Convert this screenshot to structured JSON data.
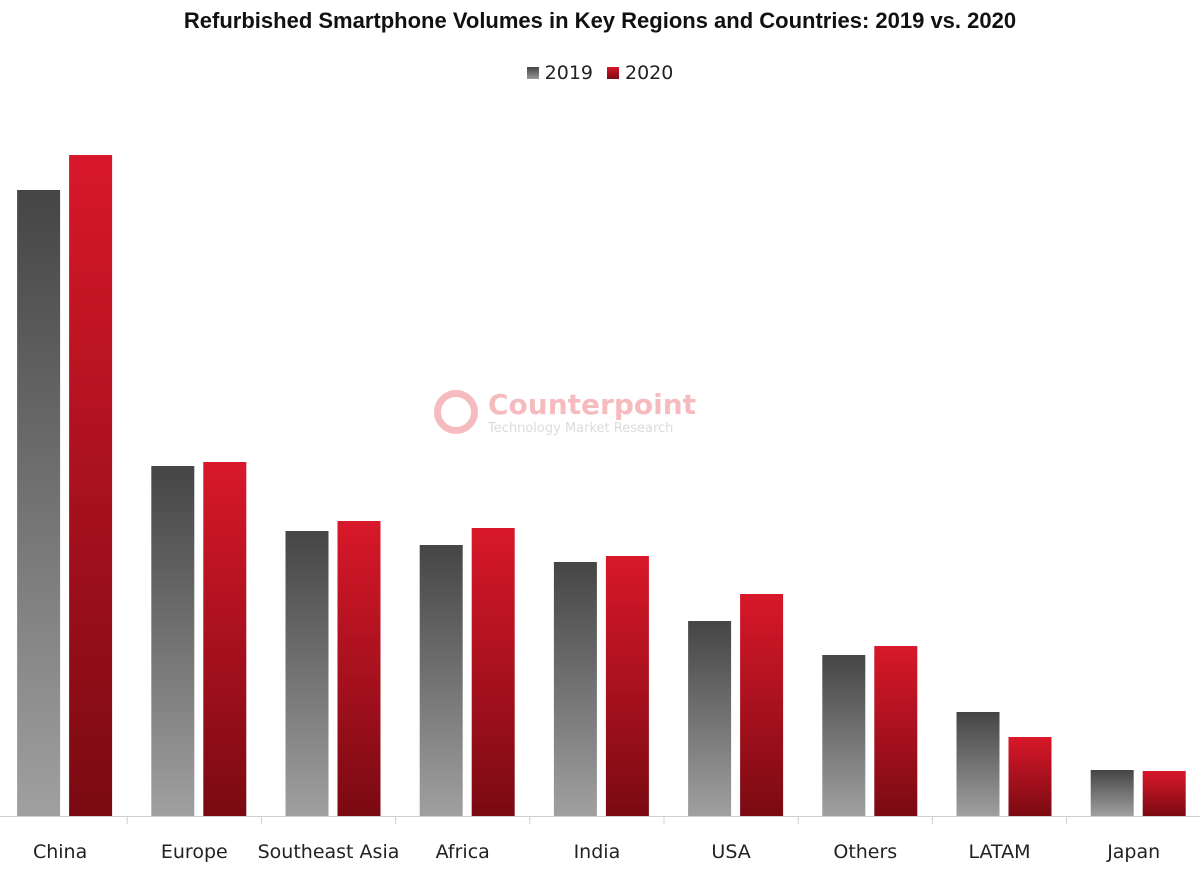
{
  "chart_data": {
    "type": "bar",
    "title": "Refurbished Smartphone Volumes in Key Regions and Countries: 2019 vs. 2020",
    "categories": [
      "China",
      "Europe",
      "Southeast Asia",
      "Africa",
      "India",
      "USA",
      "Others",
      "LATAM",
      "Japan"
    ],
    "series": [
      {
        "name": "2019",
        "color": "#5a5a5a",
        "values": [
          626,
          350,
          285,
          271,
          254,
          195,
          161,
          104,
          46
        ]
      },
      {
        "name": "2020",
        "color": "#c8141f",
        "values": [
          661,
          354,
          295,
          288,
          260,
          222,
          170,
          79,
          45
        ]
      }
    ],
    "xlabel": "",
    "ylabel": "",
    "y_axis_shown": false,
    "grid": false,
    "legend_position": "top"
  },
  "watermark": {
    "name": "Counterpoint",
    "tagline": "Technology Market Research"
  }
}
